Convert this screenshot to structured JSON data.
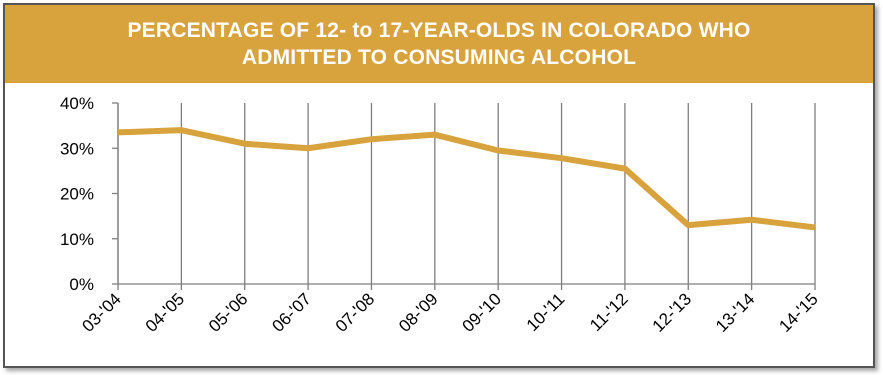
{
  "chart_data": {
    "type": "line",
    "title_lines": [
      "PERCENTAGE OF 12- to 17-YEAR-OLDS IN COLORADO WHO",
      "ADMITTED TO CONSUMING ALCOHOL"
    ],
    "categories": [
      "03-'04",
      "04-'05",
      "05-'06",
      "06-'07",
      "07-'08",
      "08-'09",
      "09-'10",
      "10-'11",
      "11-'12",
      "12-'13",
      "13-'14",
      "14-'15"
    ],
    "series": [
      {
        "values": [
          33.5,
          34.0,
          31.0,
          30.0,
          32.0,
          33.0,
          29.5,
          27.8,
          25.5,
          13.0,
          14.2,
          12.5
        ]
      }
    ],
    "ylim": [
      0,
      40
    ],
    "yticks": [
      "0%",
      "10%",
      "20%",
      "30%",
      "40%"
    ],
    "grid": "vertical",
    "colors": {
      "line": "#d8a23c",
      "title_bg": "#d8a23c",
      "grid": "#7f7f7f"
    }
  }
}
